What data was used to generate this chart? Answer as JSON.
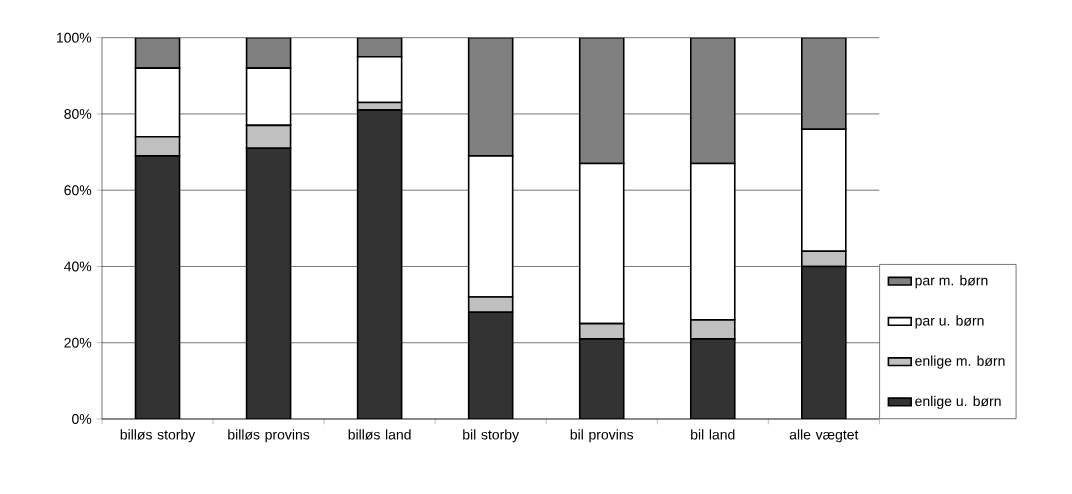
{
  "chart_data": {
    "type": "bar",
    "stacked": true,
    "categories": [
      "billøs storby",
      "billøs provins",
      "billøs land",
      "bil storby",
      "bil provins",
      "bil land",
      "alle vægtet"
    ],
    "series": [
      {
        "name": "enlige u. børn",
        "color": "#333333",
        "values": [
          69,
          71,
          81,
          28,
          21,
          21,
          40
        ]
      },
      {
        "name": "enlige m. børn",
        "color": "#c0c0c0",
        "values": [
          5,
          6,
          2,
          4,
          4,
          5,
          4
        ]
      },
      {
        "name": "par u. børn",
        "color": "#ffffff",
        "values": [
          18,
          15,
          12,
          37,
          42,
          41,
          32
        ]
      },
      {
        "name": "par m. børn",
        "color": "#808080",
        "values": [
          8,
          8,
          5,
          31,
          33,
          33,
          24
        ]
      }
    ],
    "ylim": [
      0,
      100
    ],
    "yticks": [
      {
        "value": 0,
        "label": "0%"
      },
      {
        "value": 20,
        "label": "20%"
      },
      {
        "value": 40,
        "label": "40%"
      },
      {
        "value": 60,
        "label": "60%"
      },
      {
        "value": 80,
        "label": "80%"
      },
      {
        "value": 100,
        "label": "100%"
      }
    ],
    "grid": "y",
    "legend": "right"
  }
}
